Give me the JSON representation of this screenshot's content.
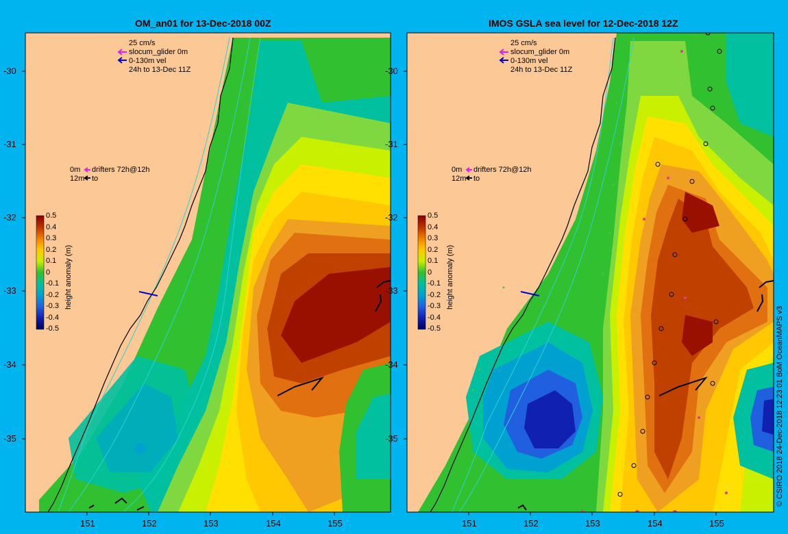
{
  "panels": [
    {
      "title": "OM_an01 for 13-Dec-2018 00Z",
      "legend_speed": "25 cm/s",
      "legend_glider": "slocum_glider 0m",
      "legend_vel": "0-130m vel",
      "legend_window": "24h to 13-Dec 11Z",
      "drifter_0m": "0m",
      "drifter_label": "drifters 72h@12h",
      "drifter_12m": "12m",
      "drifter_to": "to"
    },
    {
      "title": "IMOS GSLA sea level  for 12-Dec-2018 12Z",
      "legend_speed": "25 cm/s",
      "legend_glider": "slocum_glider 0m",
      "legend_vel": "0-130m vel",
      "legend_window": "24h to 13-Dec 11Z",
      "drifter_0m": "0m",
      "drifter_label": "drifters 72h@12h",
      "drifter_12m": "12m",
      "drifter_to": "to"
    }
  ],
  "lat_ticks": [
    "-30",
    "-31",
    "-32",
    "-33",
    "-34",
    "-35"
  ],
  "lon_ticks": [
    "151",
    "152",
    "153",
    "154",
    "155"
  ],
  "colorbar": {
    "label": "height anomaly (m)",
    "ticks": [
      "0.5",
      "0.4",
      "0.3",
      "0.2",
      "0.1",
      "0",
      "-0.1",
      "-0.2",
      "-0.3",
      "-0.4",
      "-0.5"
    ]
  },
  "credit": "© CSIRO 2018   24-Dec-2018 12:23:01 BoM OceanMAPS v3",
  "colors": {
    "background": "#00b4f0",
    "land": "#fcc896",
    "glider_arrow": "#e020e0",
    "vel_arrow": "#0000d0"
  }
}
